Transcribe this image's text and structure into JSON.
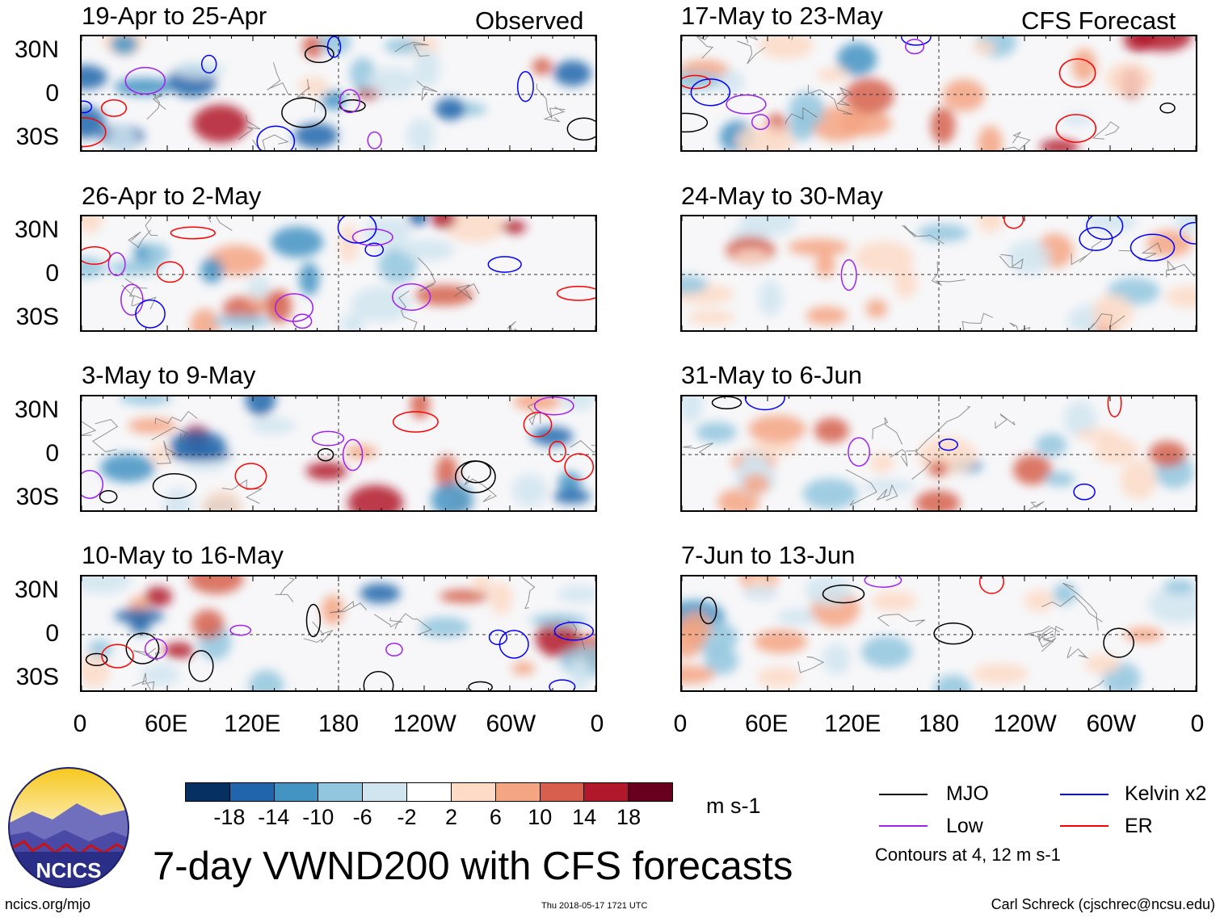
{
  "panels": [
    {
      "label": "19-Apr to 25-Apr",
      "tag": "Observed"
    },
    {
      "label": "26-Apr to 2-May",
      "tag": ""
    },
    {
      "label": "3-May to 9-May",
      "tag": ""
    },
    {
      "label": "10-May to 16-May",
      "tag": ""
    },
    {
      "label": "17-May to 23-May",
      "tag": "CFS Forecast"
    },
    {
      "label": "24-May to 30-May",
      "tag": ""
    },
    {
      "label": "31-May to 6-Jun",
      "tag": ""
    },
    {
      "label": "7-Jun to 13-Jun",
      "tag": ""
    }
  ],
  "lat_labels": [
    "30N",
    "0",
    "30S"
  ],
  "lon_labels": [
    "0",
    "60E",
    "120E",
    "180",
    "120W",
    "60W",
    "0"
  ],
  "colorbar": {
    "colors": [
      "#053061",
      "#2166ac",
      "#4393c3",
      "#92c5de",
      "#d1e5f0",
      "#ffffff",
      "#fddbc7",
      "#f4a582",
      "#d6604d",
      "#b2182b",
      "#67001f"
    ],
    "ticks": [
      "-18",
      "-14",
      "-10",
      "-6",
      "-2",
      "2",
      "6",
      "10",
      "14",
      "18"
    ],
    "units": "m s-1"
  },
  "title": "7-day VWND200 with CFS forecasts",
  "legend": {
    "items": [
      {
        "label": "MJO",
        "color": "#000000"
      },
      {
        "label": "Kelvin x2",
        "color": "#0000ff"
      },
      {
        "label": "Low",
        "color": "#a020f0"
      },
      {
        "label": "ER",
        "color": "#ff0000"
      }
    ],
    "note": "Contours at 4, 12 m s-1"
  },
  "logo_text": "NCICS",
  "footer": {
    "left": "ncics.org/mjo",
    "middle": "Thu 2018-05-17 1721 UTC",
    "right": "Carl Schreck (cjschrec@ncsu.edu)"
  }
}
